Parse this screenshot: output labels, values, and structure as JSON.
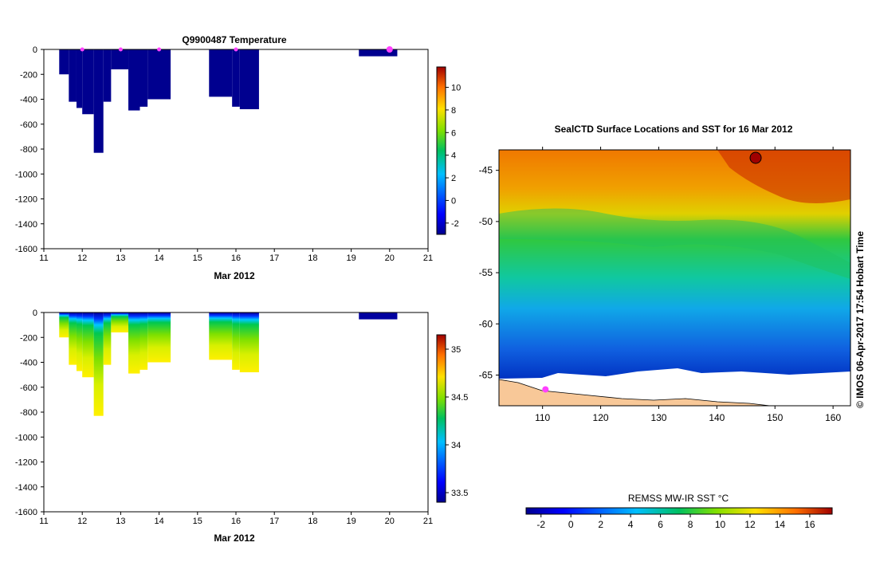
{
  "chart_data": [
    {
      "type": "heatmap",
      "title": "Q9900487  Temperature",
      "xlabel": "Mar 2012",
      "ylabel": "",
      "x_ticks": [
        "11",
        "12",
        "13",
        "14",
        "15",
        "16",
        "17",
        "18",
        "19",
        "20",
        "21"
      ],
      "y_ticks": [
        "0",
        "-200",
        "-400",
        "-600",
        "-800",
        "-1000",
        "-1200",
        "-1400",
        "-1600"
      ],
      "xlim": [
        11,
        21
      ],
      "ylim": [
        -1600,
        0
      ],
      "profiles": [
        {
          "x0": 11.4,
          "x1": 11.65,
          "depth": 200
        },
        {
          "x0": 11.65,
          "x1": 11.85,
          "depth": 420
        },
        {
          "x0": 11.85,
          "x1": 12.0,
          "depth": 470
        },
        {
          "x0": 12.0,
          "x1": 12.3,
          "depth": 520
        },
        {
          "x0": 12.3,
          "x1": 12.55,
          "depth": 830
        },
        {
          "x0": 12.55,
          "x1": 12.75,
          "depth": 420
        },
        {
          "x0": 12.75,
          "x1": 13.2,
          "depth": 160
        },
        {
          "x0": 13.2,
          "x1": 13.5,
          "depth": 490
        },
        {
          "x0": 13.5,
          "x1": 13.7,
          "depth": 460
        },
        {
          "x0": 13.7,
          "x1": 14.3,
          "depth": 400
        },
        {
          "x0": 15.3,
          "x1": 15.9,
          "depth": 380
        },
        {
          "x0": 15.9,
          "x1": 16.1,
          "depth": 460
        },
        {
          "x0": 16.1,
          "x1": 16.6,
          "depth": 480
        },
        {
          "x0": 19.2,
          "x1": 20.2,
          "depth": 55
        }
      ],
      "markers": [
        12,
        13,
        14,
        16,
        20
      ],
      "colorbar": {
        "ticks": [
          "-2",
          "0",
          "2",
          "4",
          "6",
          "8",
          "10"
        ],
        "min": -3,
        "max": 11.8
      },
      "value_color": "#00008f"
    },
    {
      "type": "heatmap",
      "title": "",
      "xlabel": "Mar 2012",
      "ylabel": "",
      "x_ticks": [
        "11",
        "12",
        "13",
        "14",
        "15",
        "16",
        "17",
        "18",
        "19",
        "20",
        "21"
      ],
      "y_ticks": [
        "0",
        "-200",
        "-400",
        "-600",
        "-800",
        "-1000",
        "-1200",
        "-1400",
        "-1600"
      ],
      "xlim": [
        11,
        21
      ],
      "ylim": [
        -1600,
        0
      ],
      "profiles": [
        {
          "x0": 11.4,
          "x1": 11.65,
          "depth": 200
        },
        {
          "x0": 11.65,
          "x1": 11.85,
          "depth": 420
        },
        {
          "x0": 11.85,
          "x1": 12.0,
          "depth": 470
        },
        {
          "x0": 12.0,
          "x1": 12.3,
          "depth": 520
        },
        {
          "x0": 12.3,
          "x1": 12.55,
          "depth": 830
        },
        {
          "x0": 12.55,
          "x1": 12.75,
          "depth": 420
        },
        {
          "x0": 12.75,
          "x1": 13.2,
          "depth": 160
        },
        {
          "x0": 13.2,
          "x1": 13.5,
          "depth": 490
        },
        {
          "x0": 13.5,
          "x1": 13.7,
          "depth": 460
        },
        {
          "x0": 13.7,
          "x1": 14.3,
          "depth": 400
        },
        {
          "x0": 15.3,
          "x1": 15.9,
          "depth": 380
        },
        {
          "x0": 15.9,
          "x1": 16.1,
          "depth": 460
        },
        {
          "x0": 16.1,
          "x1": 16.6,
          "depth": 480
        },
        {
          "x0": 19.2,
          "x1": 20.2,
          "depth": 55
        }
      ],
      "salinity_by_depth": [
        {
          "depth": 0,
          "value": 33.6
        },
        {
          "depth": 60,
          "value": 33.75
        },
        {
          "depth": 100,
          "value": 34.0
        },
        {
          "depth": 140,
          "value": 34.2
        },
        {
          "depth": 250,
          "value": 34.35
        },
        {
          "depth": 400,
          "value": 34.55
        },
        {
          "depth": 830,
          "value": 34.65
        }
      ],
      "colorbar": {
        "ticks": [
          "33.5",
          "34",
          "34.5",
          "35"
        ],
        "min": 33.4,
        "max": 35.15
      }
    },
    {
      "type": "heatmap",
      "title": "SealCTD Surface Locations and SST for 16 Mar 2012",
      "xlabel": "",
      "ylabel": "",
      "x_ticks": [
        "110",
        "120",
        "130",
        "140",
        "150",
        "160"
      ],
      "y_ticks": [
        "-45",
        "-50",
        "-55",
        "-60",
        "-65"
      ],
      "xlim": [
        102.5,
        163
      ],
      "ylim": [
        -68,
        -43
      ],
      "sst_bands": [
        {
          "lat": -43,
          "value": 13
        },
        {
          "lat": -46,
          "value": 12
        },
        {
          "lat": -48,
          "value": 10
        },
        {
          "lat": -50,
          "value": 8
        },
        {
          "lat": -53,
          "value": 5
        },
        {
          "lat": -56,
          "value": 3
        },
        {
          "lat": -59,
          "value": 1
        },
        {
          "lat": -62,
          "value": 0
        },
        {
          "lat": -65,
          "value": -1
        }
      ],
      "marker": {
        "lon": 110.5,
        "lat": -66.4
      },
      "colorbar_label": "REMSS MW-IR SST °C",
      "colorbar": {
        "ticks": [
          "-2",
          "0",
          "2",
          "4",
          "6",
          "8",
          "10",
          "12",
          "14",
          "16"
        ],
        "min": -3,
        "max": 17.5
      },
      "credit": "©  IMOS 06-Apr-2017 17:54 Hobart Time"
    }
  ]
}
